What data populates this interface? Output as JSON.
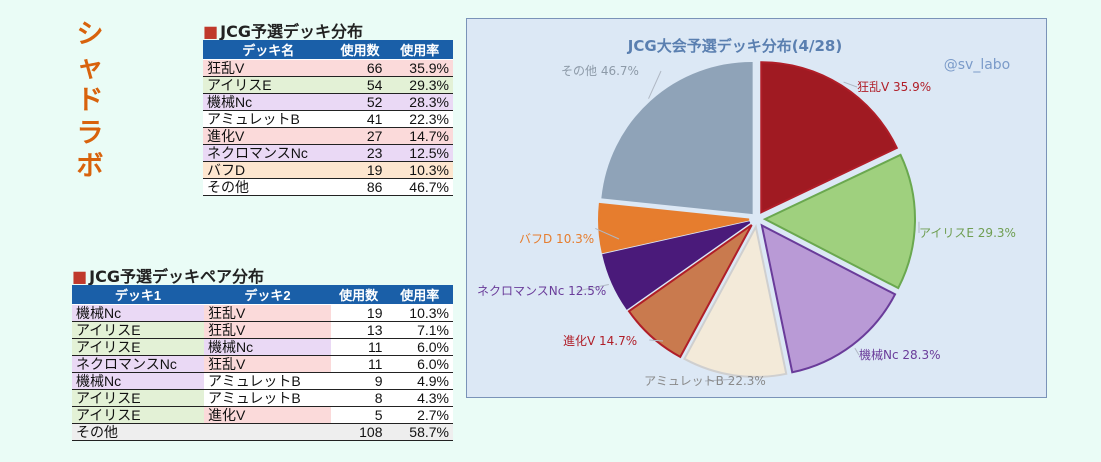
{
  "brand": {
    "chars": [
      "シ",
      "ャ",
      "ド",
      "ラ",
      "ボ"
    ]
  },
  "deck_table": {
    "title": "JCG予選デッキ分布",
    "headers": [
      "デッキ名",
      "使用数",
      "使用率"
    ],
    "rows": [
      {
        "name": "狂乱V",
        "count": "66",
        "rate": "35.9%",
        "color": "red"
      },
      {
        "name": "アイリスE",
        "count": "54",
        "rate": "29.3%",
        "color": "green"
      },
      {
        "name": "機械Nc",
        "count": "52",
        "rate": "28.3%",
        "color": "purple"
      },
      {
        "name": "アミュレットB",
        "count": "41",
        "rate": "22.3%",
        "color": "white"
      },
      {
        "name": "進化V",
        "count": "27",
        "rate": "14.7%",
        "color": "red"
      },
      {
        "name": "ネクロマンスNc",
        "count": "23",
        "rate": "12.5%",
        "color": "purple"
      },
      {
        "name": "バフD",
        "count": "19",
        "rate": "10.3%",
        "color": "orange"
      },
      {
        "name": "その他",
        "count": "86",
        "rate": "46.7%",
        "color": "white"
      }
    ]
  },
  "pair_table": {
    "title": "JCG予選デッキペア分布",
    "headers": [
      "デッキ1",
      "デッキ2",
      "使用数",
      "使用率"
    ],
    "rows": [
      {
        "deck1": "機械Nc",
        "c1": "purple",
        "deck2": "狂乱V",
        "c2": "red",
        "count": "19",
        "rate": "10.3%"
      },
      {
        "deck1": "アイリスE",
        "c1": "green",
        "deck2": "狂乱V",
        "c2": "red",
        "count": "13",
        "rate": "7.1%"
      },
      {
        "deck1": "アイリスE",
        "c1": "green",
        "deck2": "機械Nc",
        "c2": "purple",
        "count": "11",
        "rate": "6.0%"
      },
      {
        "deck1": "ネクロマンスNc",
        "c1": "purple",
        "deck2": "狂乱V",
        "c2": "red",
        "count": "11",
        "rate": "6.0%"
      },
      {
        "deck1": "機械Nc",
        "c1": "purple",
        "deck2": "アミュレットB",
        "c2": "white",
        "count": "9",
        "rate": "4.9%"
      },
      {
        "deck1": "アイリスE",
        "c1": "green",
        "deck2": "アミュレットB",
        "c2": "white",
        "count": "8",
        "rate": "4.3%"
      },
      {
        "deck1": "アイリスE",
        "c1": "green",
        "deck2": "進化V",
        "c2": "red",
        "count": "5",
        "rate": "2.7%"
      },
      {
        "deck1": "その他",
        "c1": "gray",
        "deck2": "",
        "c2": "gray",
        "count": "108",
        "rate": "58.7%"
      }
    ]
  },
  "colors": {
    "red": "#c0282f",
    "green": "#7cae5a",
    "purple": "#6a3c9a",
    "orange": "#e67d2e",
    "navy": "#4a1a7a",
    "gray": "#8fa3b8",
    "header": "#1a5fa8"
  },
  "chart_data": {
    "type": "pie",
    "title": "JCG大会予選デッキ分布(4/28)",
    "watermark": "@sv_labo",
    "slices": [
      {
        "label": "狂乱V 35.9%",
        "value": 35.9,
        "color": "#a01a22",
        "stroke": "#b01e28",
        "text_color": "#b01e28"
      },
      {
        "label": "アイリスE 29.3%",
        "value": 29.3,
        "color": "#9fd07e",
        "stroke": "#6aa84f",
        "text_color": "#6f9e52"
      },
      {
        "label": "機械Nc 28.3%",
        "value": 28.3,
        "color": "#b99ad6",
        "stroke": "#6a3c9a",
        "text_color": "#6a3c9a"
      },
      {
        "label": "アミュレットB 22.3%",
        "value": 22.3,
        "color": "#f3ead9",
        "stroke": "#cfcfcf",
        "text_color": "#8a8a8a"
      },
      {
        "label": "進化V 14.7%",
        "value": 14.7,
        "color": "#c97a4e",
        "stroke": "#b01e28",
        "text_color": "#b01e28"
      },
      {
        "label": "ネクロマンスNc 12.5%",
        "value": 12.5,
        "color": "#4a1a7a",
        "stroke": "#4a1a7a",
        "text_color": "#6a3c9a"
      },
      {
        "label": "バフD 10.3%",
        "value": 10.3,
        "color": "#e67d2e",
        "stroke": "#e67d2e",
        "text_color": "#e67d2e"
      },
      {
        "label": "その他 46.7%",
        "value": 46.7,
        "color": "#8fa3b8",
        "stroke": "#8fa3b8",
        "text_color": "#8d9aa8"
      }
    ]
  }
}
